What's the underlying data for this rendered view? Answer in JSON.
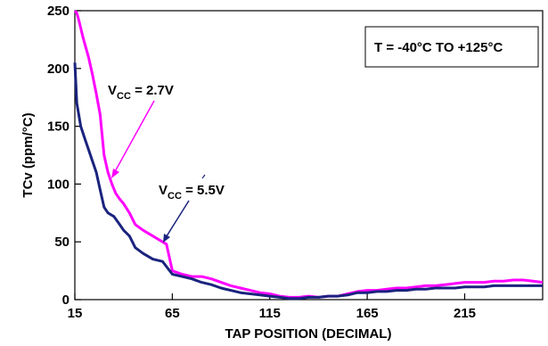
{
  "chart_data": {
    "type": "line",
    "title": "",
    "xlabel": "TAP POSITION (DECIMAL)",
    "ylabel": "TCv (ppm/°C)",
    "xlim": [
      15,
      255
    ],
    "ylim": [
      0,
      250
    ],
    "xticks": [
      15,
      65,
      115,
      165,
      215
    ],
    "yticks": [
      0,
      50,
      100,
      150,
      200,
      250
    ],
    "grid": false,
    "legend": "none",
    "series": [
      {
        "name": "VCC = 2.7V",
        "color": "#ff00ff",
        "x": [
          15,
          16,
          17,
          18,
          19,
          20,
          22,
          24,
          26,
          28,
          30,
          32,
          34,
          36,
          38,
          40,
          43,
          46,
          50,
          55,
          60,
          62,
          65,
          70,
          75,
          80,
          85,
          90,
          95,
          100,
          105,
          110,
          115,
          120,
          125,
          130,
          135,
          140,
          145,
          150,
          155,
          160,
          165,
          170,
          175,
          180,
          185,
          190,
          195,
          200,
          205,
          210,
          215,
          220,
          225,
          230,
          235,
          240,
          245,
          250,
          255
        ],
        "y": [
          250,
          248,
          242,
          235,
          228,
          222,
          210,
          195,
          178,
          160,
          125,
          110,
          100,
          92,
          87,
          83,
          75,
          65,
          60,
          55,
          50,
          48,
          25,
          22,
          20,
          20,
          18,
          15,
          12,
          10,
          8,
          6,
          5,
          3,
          2,
          2,
          3,
          2,
          3,
          3,
          5,
          7,
          8,
          8,
          9,
          10,
          10,
          11,
          12,
          12,
          13,
          14,
          15,
          15,
          15,
          16,
          16,
          17,
          17,
          16,
          15
        ]
      },
      {
        "name": "VCC = 5.5V",
        "color": "#1a237e",
        "x": [
          15,
          16,
          17,
          18,
          20,
          22,
          24,
          26,
          28,
          30,
          32,
          35,
          38,
          40,
          43,
          46,
          50,
          55,
          60,
          65,
          70,
          75,
          80,
          85,
          90,
          95,
          100,
          105,
          110,
          115,
          120,
          125,
          130,
          135,
          140,
          145,
          150,
          155,
          160,
          165,
          170,
          175,
          180,
          185,
          190,
          195,
          200,
          205,
          210,
          215,
          220,
          225,
          230,
          235,
          240,
          245,
          250,
          255
        ],
        "y": [
          205,
          170,
          160,
          150,
          140,
          130,
          120,
          110,
          95,
          80,
          75,
          72,
          65,
          60,
          55,
          45,
          40,
          35,
          33,
          22,
          20,
          18,
          15,
          13,
          10,
          8,
          6,
          5,
          4,
          3,
          2,
          1,
          1,
          2,
          2,
          3,
          3,
          4,
          6,
          6,
          7,
          7,
          8,
          8,
          9,
          9,
          10,
          10,
          10,
          11,
          11,
          11,
          12,
          12,
          12,
          12,
          12,
          12
        ]
      }
    ],
    "annotations": [
      {
        "label": "V",
        "sub": "CC",
        "suffix": " = 2.7V"
      },
      {
        "label": "V",
        "sub": "CC",
        "suffix": " = 5.5V"
      },
      {
        "text": "T = -40°C TO +125°C"
      }
    ]
  }
}
